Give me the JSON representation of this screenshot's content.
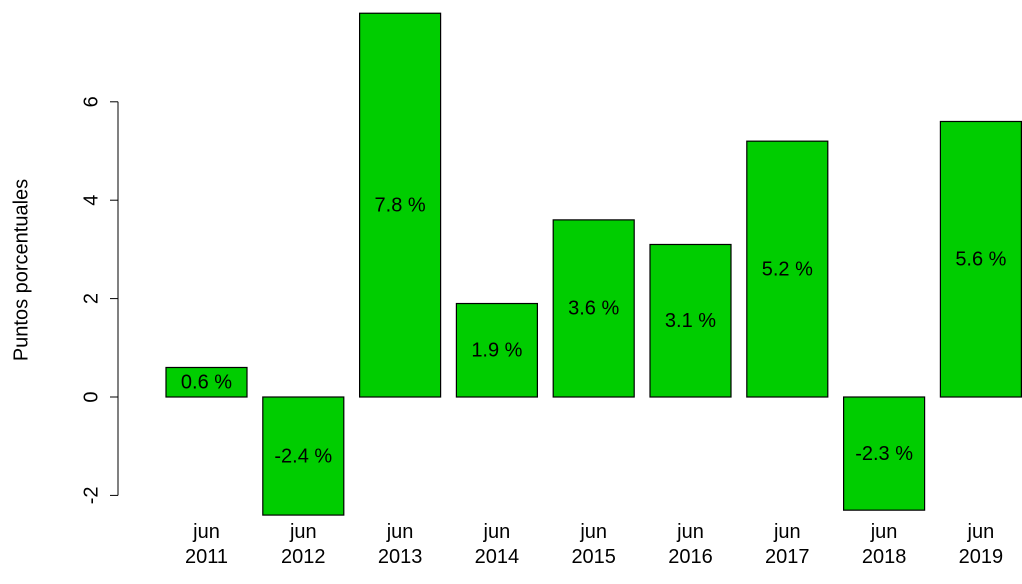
{
  "chart_data": {
    "type": "bar",
    "y_label": "Puntos porcentuales",
    "categories": [
      "jun\n2011",
      "jun\n2012",
      "jun\n2013",
      "jun\n2014",
      "jun\n2015",
      "jun\n2016",
      "jun\n2017",
      "jun\n2018",
      "jun\n2019"
    ],
    "values": [
      0.6,
      -2.4,
      7.8,
      1.9,
      3.6,
      3.1,
      5.2,
      -2.3,
      5.6
    ],
    "value_labels": [
      "0.6 %",
      "-2.4 %",
      "7.8 %",
      "1.9 %",
      "3.6 %",
      "3.1 %",
      "5.2 %",
      "-2.3 %",
      "5.6 %"
    ],
    "color": "#00cd00",
    "ylim": [
      -2.4,
      7.8
    ],
    "yticks": [
      -2,
      0,
      2,
      4,
      6
    ]
  }
}
